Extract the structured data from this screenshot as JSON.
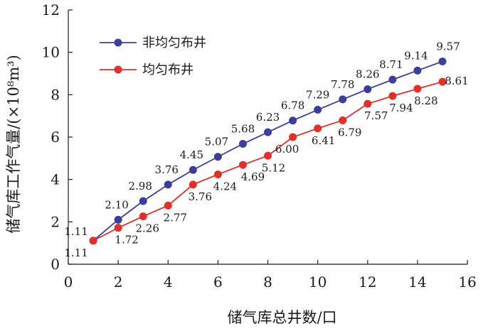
{
  "chart_data": {
    "type": "line",
    "xlabel": "储气库总井数/口",
    "ylabel": "储气库工作气量/(×10⁸m³)",
    "xlim": [
      0,
      16
    ],
    "ylim": [
      0,
      12
    ],
    "x_ticks": [
      0,
      2,
      4,
      6,
      8,
      10,
      12,
      14,
      16
    ],
    "y_ticks": [
      0,
      2,
      4,
      6,
      8,
      10,
      12
    ],
    "grid": false,
    "legend_position": "top-left",
    "x": [
      1,
      2,
      3,
      4,
      5,
      6,
      7,
      8,
      9,
      10,
      11,
      12,
      13,
      14,
      15
    ],
    "series": [
      {
        "name": "非均匀布井",
        "color": "#3b3f9a",
        "values": [
          1.11,
          2.1,
          2.98,
          3.76,
          4.45,
          5.07,
          5.68,
          6.23,
          6.78,
          7.29,
          7.78,
          8.26,
          8.71,
          9.14,
          9.57
        ],
        "labels": [
          "1.11",
          "2.10",
          "2.98",
          "3.76",
          "4.45",
          "5.07",
          "5.68",
          "6.23",
          "6.78",
          "7.29",
          "7.78",
          "8.26",
          "8.71",
          "9.14",
          "9.57"
        ]
      },
      {
        "name": "均匀布井",
        "color": "#e0302a",
        "values": [
          1.11,
          1.72,
          2.26,
          2.77,
          3.76,
          4.24,
          4.69,
          5.12,
          6.0,
          6.41,
          6.79,
          7.57,
          7.94,
          8.28,
          8.61
        ],
        "labels": [
          "1.11",
          "1.72",
          "2.26",
          "2.77",
          "3.76",
          "4.24",
          "4.69",
          "5.12",
          "6.00",
          "6.41",
          "6.79",
          "7.57",
          "7.94",
          "8.28",
          "8.61"
        ]
      }
    ]
  }
}
